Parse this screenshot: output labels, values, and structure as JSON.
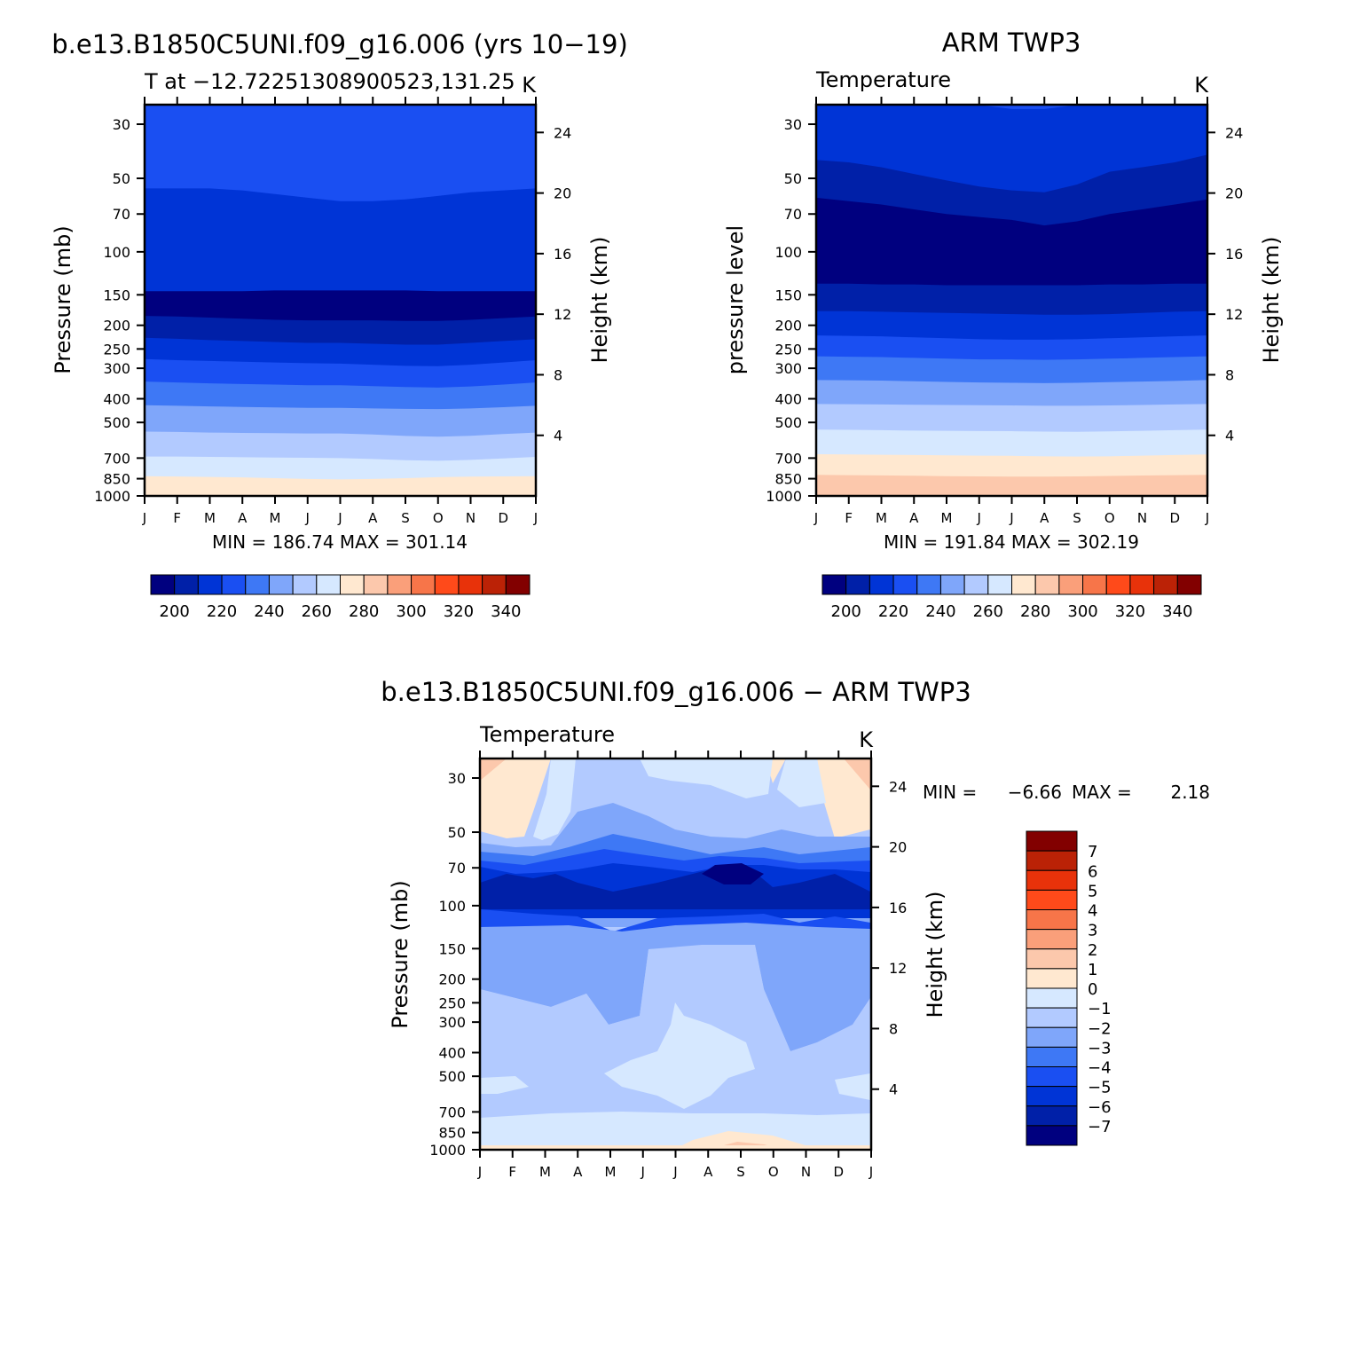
{
  "panels": [
    {
      "main_title": "b.e13.B1850C5UNI.f09_g16.006 (yrs 10−19)",
      "left_title": "T at −12.72251308900523,131.25",
      "right_title": "K",
      "ylabel": "Pressure (mb)",
      "y2label": "Height (km)",
      "stats": "MIN = 186.74 MAX = 301.14"
    },
    {
      "main_title": "ARM TWP3",
      "left_title": "Temperature",
      "right_title": "K",
      "ylabel": "pressure level",
      "y2label": "Height (km)",
      "stats": "MIN = 191.84 MAX = 302.19"
    },
    {
      "main_title": "b.e13.B1850C5UNI.f09_g16.006 − ARM TWP3",
      "left_title": "Temperature",
      "right_title": "K",
      "ylabel": "Pressure (mb)",
      "y2label": "Height (km)",
      "stats_min_label": "MIN =",
      "stats_min": "−6.66",
      "stats_max_label": "MAX =",
      "stats_max": "2.18"
    }
  ],
  "colorbar_abs": {
    "labels": [
      "200",
      "220",
      "240",
      "260",
      "280",
      "300",
      "320",
      "340"
    ],
    "colors": [
      "#00007f",
      "#0020a8",
      "#0034d6",
      "#1a4ff2",
      "#3e78f5",
      "#7fa6fa",
      "#b2caff",
      "#d6e8ff",
      "#ffe8d0",
      "#fcc8ac",
      "#fa9f7a",
      "#f77549",
      "#ff4a1a",
      "#e8320a",
      "#bb2206",
      "#820000"
    ]
  },
  "colorbar_diff": {
    "labels": [
      "7",
      "6",
      "5",
      "4",
      "3",
      "2",
      "1",
      "0",
      "−1",
      "−2",
      "−3",
      "−4",
      "−5",
      "−6",
      "−7"
    ],
    "colors": [
      "#820000",
      "#bb2206",
      "#e8320a",
      "#ff4a1a",
      "#f77549",
      "#fa9f7a",
      "#fcc8ac",
      "#ffe8d0",
      "#d6e8ff",
      "#b2caff",
      "#7fa6fa",
      "#3e78f5",
      "#1a4ff2",
      "#0034d6",
      "#0020a8",
      "#00007f"
    ]
  },
  "chart_data": [
    {
      "type": "heatmap",
      "title": "T at −12.72251308900523,131.25",
      "units": "K",
      "x": [
        "J",
        "F",
        "M",
        "A",
        "M",
        "J",
        "J",
        "A",
        "S",
        "O",
        "N",
        "D",
        "J"
      ],
      "y_ticks": [
        30,
        50,
        70,
        100,
        150,
        200,
        250,
        300,
        400,
        500,
        700,
        850,
        1000
      ],
      "y2_ticks": [
        4,
        8,
        12,
        16,
        20,
        24
      ],
      "ylabel": "Pressure (mb)",
      "y2label": "Height (km)",
      "min": 186.74,
      "max": 301.14,
      "contour_levels": [
        190,
        200,
        210,
        220,
        230,
        240,
        250,
        260,
        270,
        280,
        290,
        300
      ],
      "contour_pressures_mb": [
        [
          55,
          55,
          55,
          56,
          58,
          60,
          62,
          62,
          61,
          59,
          57,
          56,
          55
        ],
        [
          145,
          145,
          145,
          145,
          144,
          144,
          144,
          144,
          144,
          145,
          145,
          145,
          145
        ],
        [
          183,
          184,
          186,
          188,
          190,
          191,
          191,
          191,
          192,
          192,
          190,
          187,
          184
        ],
        [
          225,
          227,
          230,
          232,
          234,
          236,
          236,
          238,
          240,
          240,
          236,
          232,
          228
        ],
        [
          275,
          278,
          280,
          282,
          284,
          286,
          287,
          290,
          293,
          294,
          290,
          284,
          278
        ],
        [
          340,
          343,
          346,
          348,
          350,
          352,
          352,
          355,
          358,
          360,
          356,
          350,
          343
        ],
        [
          425,
          427,
          430,
          432,
          434,
          436,
          436,
          438,
          440,
          441,
          438,
          433,
          427
        ],
        [
          545,
          547,
          550,
          552,
          553,
          555,
          555,
          560,
          568,
          572,
          567,
          558,
          550
        ],
        [
          690,
          690,
          692,
          694,
          696,
          698,
          700,
          706,
          714,
          718,
          712,
          702,
          692
        ],
        [
          830,
          833,
          836,
          840,
          846,
          852,
          856,
          852,
          846,
          838,
          834,
          832,
          830
        ],
        [
          1000,
          1000,
          1000,
          1000,
          1000,
          1000,
          1000,
          1000,
          1000,
          990,
          988,
          993,
          1000
        ]
      ]
    },
    {
      "type": "heatmap",
      "title": "Temperature",
      "units": "K",
      "x": [
        "J",
        "F",
        "M",
        "A",
        "M",
        "J",
        "J",
        "A",
        "S",
        "O",
        "N",
        "D",
        "J"
      ],
      "y_ticks": [
        30,
        50,
        70,
        100,
        150,
        200,
        250,
        300,
        400,
        500,
        700,
        850,
        1000
      ],
      "y2_ticks": [
        4,
        8,
        12,
        16,
        20,
        24
      ],
      "ylabel": "pressure level",
      "y2label": "Height (km)",
      "min": 191.84,
      "max": 302.19,
      "contour_levels": [
        190,
        200,
        210,
        220,
        230,
        240,
        250,
        260,
        270,
        280,
        290,
        300
      ],
      "contour_pressures_mb": [
        [
          25,
          25,
          25,
          25,
          25,
          25,
          26,
          26,
          25,
          25,
          25,
          25,
          25
        ],
        [
          42,
          43,
          45,
          48,
          51,
          54,
          56,
          57,
          53,
          47,
          45,
          43,
          40
        ],
        [
          60,
          62,
          64,
          67,
          70,
          72,
          74,
          78,
          75,
          70,
          67,
          64,
          61
        ],
        [
          135,
          135,
          136,
          136,
          137,
          137,
          137,
          137,
          137,
          136,
          136,
          135,
          135
        ],
        [
          175,
          175,
          176,
          177,
          178,
          179,
          180,
          181,
          181,
          180,
          178,
          176,
          175
        ],
        [
          220,
          221,
          222,
          224,
          226,
          228,
          229,
          229,
          228,
          226,
          224,
          222,
          220
        ],
        [
          268,
          269,
          270,
          272,
          274,
          276,
          276,
          277,
          276,
          274,
          272,
          270,
          268
        ],
        [
          335,
          336,
          337,
          339,
          341,
          343,
          344,
          345,
          344,
          342,
          340,
          338,
          335
        ],
        [
          420,
          421,
          422,
          423,
          424,
          425,
          426,
          427,
          427,
          426,
          424,
          422,
          420
        ],
        [
          535,
          536,
          538,
          540,
          541,
          542,
          543,
          545,
          546,
          544,
          541,
          538,
          535
        ],
        [
          675,
          676,
          678,
          680,
          682,
          684,
          685,
          688,
          690,
          688,
          684,
          680,
          676
        ],
        [
          820,
          822,
          824,
          827,
          830,
          832,
          834,
          834,
          832,
          828,
          825,
          822,
          820
        ],
        [
          1000,
          1000,
          1000,
          1000,
          1000,
          1000,
          1000,
          1000,
          1000,
          996,
          995,
          996,
          1000
        ]
      ]
    },
    {
      "type": "heatmap",
      "title": "Temperature",
      "units": "K",
      "x": [
        "J",
        "F",
        "M",
        "A",
        "M",
        "J",
        "J",
        "A",
        "S",
        "O",
        "N",
        "D",
        "J"
      ],
      "y_ticks": [
        30,
        50,
        70,
        100,
        150,
        200,
        250,
        300,
        400,
        500,
        700,
        850,
        1000
      ],
      "y2_ticks": [
        4,
        8,
        12,
        16,
        20,
        24
      ],
      "ylabel": "Pressure (mb)",
      "y2label": "Height (km)",
      "min": -6.66,
      "max": 2.18,
      "contour_levels": [
        -7,
        -6,
        -5,
        -4,
        -3,
        -2,
        -1,
        0,
        1,
        2,
        3,
        4,
        5,
        6,
        7
      ]
    }
  ]
}
